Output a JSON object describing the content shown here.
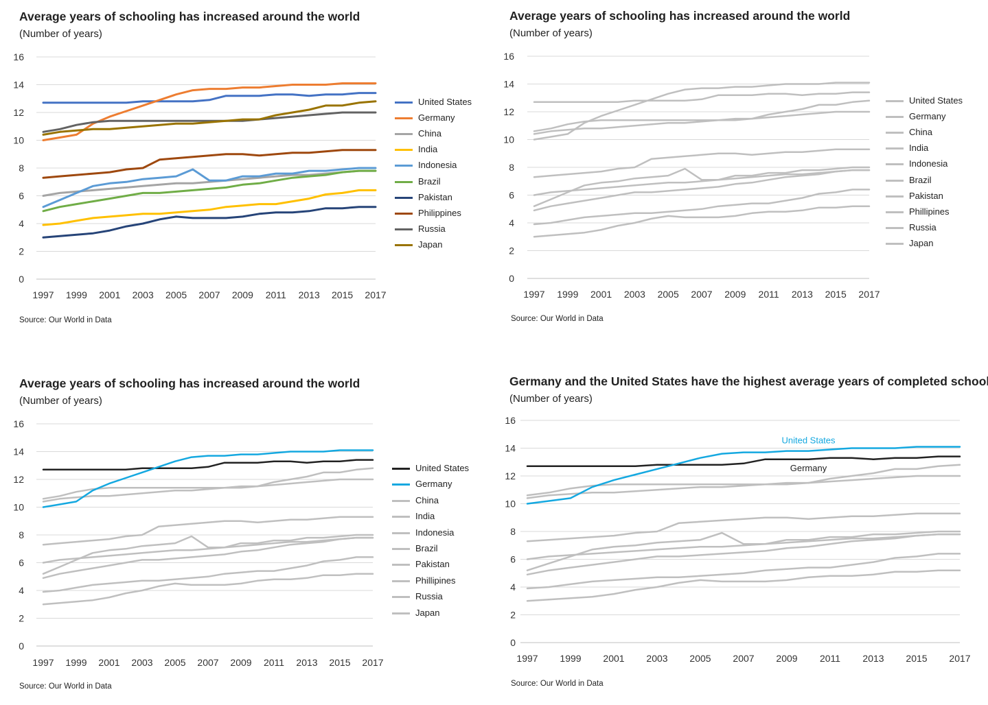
{
  "colors": {
    "United States": "#4472c4",
    "Germany": "#ed7d31",
    "China": "#a5a5a5",
    "India": "#ffc000",
    "Indonesia": "#5b9bd5",
    "Brazil": "#70ad47",
    "Pakistan": "#264478",
    "Philippines": "#9e480e",
    "Russia": "#636363",
    "Japan": "#997300",
    "gray": "#bfbfbf",
    "highlight": "#14a8e0",
    "dark": "#222222",
    "grid": "#d9d9d9"
  },
  "chart_data": [
    {
      "type": "line",
      "title": "Average years of schooling has increased around the world",
      "subtitle": "(Number of years)",
      "source": "Source: Our World in Data",
      "ylim": [
        0,
        16
      ],
      "yticks": [
        "0",
        "2",
        "4",
        "6",
        "8",
        "10",
        "12",
        "14",
        "16"
      ],
      "xtick_labels": [
        "1997",
        "1999",
        "2001",
        "2003",
        "2005",
        "2007",
        "2009",
        "2011",
        "2013",
        "2015",
        "2017"
      ],
      "style": "color",
      "legend": [
        "United States",
        "Germany",
        "China",
        "India",
        "Indonesia",
        "Brazil",
        "Pakistan",
        "Philippines",
        "Russia",
        "Japan"
      ],
      "series_ref": "series"
    },
    {
      "type": "line",
      "title": "Average years of schooling has increased around the world",
      "subtitle": "(Number of years)",
      "source": "Source: Our World in Data",
      "ylim": [
        0,
        16
      ],
      "yticks": [
        "0",
        "2",
        "4",
        "6",
        "8",
        "10",
        "12",
        "14",
        "16"
      ],
      "xtick_labels": [
        "1997",
        "1999",
        "2001",
        "2003",
        "2005",
        "2007",
        "2009",
        "2011",
        "2013",
        "2015",
        "2017"
      ],
      "style": "gray",
      "legend": [
        "United States",
        "Germany",
        "China",
        "India",
        "Indonesia",
        "Brazil",
        "Pakistan",
        "Phillipines",
        "Russia",
        "Japan"
      ],
      "series_ref": "series"
    },
    {
      "type": "line",
      "title": "Average years of schooling has increased around the world",
      "subtitle": "(Number of years)",
      "source": "Source: Our World in Data",
      "ylim": [
        0,
        16
      ],
      "yticks": [
        "0",
        "2",
        "4",
        "6",
        "8",
        "10",
        "12",
        "14",
        "16"
      ],
      "xtick_labels": [
        "1997",
        "1999",
        "2001",
        "2003",
        "2005",
        "2007",
        "2009",
        "2011",
        "2013",
        "2015",
        "2017"
      ],
      "style": "swap",
      "legend": [
        "United States",
        "Germany",
        "China",
        "India",
        "Indonesia",
        "Brazil",
        "Pakistan",
        "Phillipines",
        "Russia",
        "Japan"
      ],
      "series_ref": "series"
    },
    {
      "type": "line",
      "title": "Germany and the United States have the highest average years of completed schooling",
      "subtitle": "(Number of years)",
      "source": "Source: Our World in Data",
      "ylim": [
        0,
        16
      ],
      "yticks": [
        "0",
        "2",
        "4",
        "6",
        "8",
        "10",
        "12",
        "14",
        "16"
      ],
      "xtick_labels": [
        "1997",
        "1999",
        "2001",
        "2003",
        "2005",
        "2007",
        "2009",
        "2011",
        "2013",
        "2015",
        "2017"
      ],
      "style": "swap",
      "annotations": [
        "United States",
        "Germany"
      ],
      "series_ref": "series"
    }
  ],
  "series": {
    "years": [
      1997,
      1998,
      1999,
      2000,
      2001,
      2002,
      2003,
      2004,
      2005,
      2006,
      2007,
      2008,
      2009,
      2010,
      2011,
      2012,
      2013,
      2014,
      2015,
      2016,
      2017
    ],
    "data": [
      {
        "name": "United States",
        "values": [
          12.7,
          12.7,
          12.7,
          12.7,
          12.7,
          12.7,
          12.8,
          12.8,
          12.8,
          12.8,
          12.9,
          13.2,
          13.2,
          13.2,
          13.3,
          13.3,
          13.2,
          13.3,
          13.3,
          13.4,
          13.4
        ]
      },
      {
        "name": "Germany",
        "values": [
          10.0,
          10.2,
          10.4,
          11.2,
          11.7,
          12.1,
          12.5,
          12.9,
          13.3,
          13.6,
          13.7,
          13.7,
          13.8,
          13.8,
          13.9,
          14.0,
          14.0,
          14.0,
          14.1,
          14.1,
          14.1
        ]
      },
      {
        "name": "China",
        "values": [
          6.0,
          6.2,
          6.3,
          6.4,
          6.5,
          6.6,
          6.7,
          6.8,
          6.9,
          6.9,
          7.0,
          7.1,
          7.2,
          7.3,
          7.4,
          7.5,
          7.5,
          7.6,
          7.7,
          7.8,
          7.8
        ]
      },
      {
        "name": "India",
        "values": [
          3.9,
          4.0,
          4.2,
          4.4,
          4.5,
          4.6,
          4.7,
          4.7,
          4.8,
          4.9,
          5.0,
          5.2,
          5.3,
          5.4,
          5.4,
          5.6,
          5.8,
          6.1,
          6.2,
          6.4,
          6.4
        ]
      },
      {
        "name": "Indonesia",
        "values": [
          5.2,
          5.7,
          6.2,
          6.7,
          6.9,
          7.0,
          7.2,
          7.3,
          7.4,
          7.9,
          7.1,
          7.1,
          7.4,
          7.4,
          7.6,
          7.6,
          7.8,
          7.8,
          7.9,
          8.0,
          8.0
        ]
      },
      {
        "name": "Brazil",
        "values": [
          4.9,
          5.2,
          5.4,
          5.6,
          5.8,
          6.0,
          6.2,
          6.2,
          6.3,
          6.4,
          6.5,
          6.6,
          6.8,
          6.9,
          7.1,
          7.3,
          7.4,
          7.5,
          7.7,
          7.8,
          7.8
        ]
      },
      {
        "name": "Pakistan",
        "values": [
          3.0,
          3.1,
          3.2,
          3.3,
          3.5,
          3.8,
          4.0,
          4.3,
          4.5,
          4.4,
          4.4,
          4.4,
          4.5,
          4.7,
          4.8,
          4.8,
          4.9,
          5.1,
          5.1,
          5.2,
          5.2
        ]
      },
      {
        "name": "Philippines",
        "values": [
          7.3,
          7.4,
          7.5,
          7.6,
          7.7,
          7.9,
          8.0,
          8.6,
          8.7,
          8.8,
          8.9,
          9.0,
          9.0,
          8.9,
          9.0,
          9.1,
          9.1,
          9.2,
          9.3,
          9.3,
          9.3
        ]
      },
      {
        "name": "Russia",
        "values": [
          10.6,
          10.8,
          11.1,
          11.3,
          11.4,
          11.4,
          11.4,
          11.4,
          11.4,
          11.4,
          11.4,
          11.4,
          11.4,
          11.5,
          11.6,
          11.7,
          11.8,
          11.9,
          12.0,
          12.0,
          12.0
        ]
      },
      {
        "name": "Japan",
        "values": [
          10.4,
          10.6,
          10.7,
          10.8,
          10.8,
          10.9,
          11.0,
          11.1,
          11.2,
          11.2,
          11.3,
          11.4,
          11.5,
          11.5,
          11.8,
          12.0,
          12.2,
          12.5,
          12.5,
          12.7,
          12.8
        ]
      }
    ]
  }
}
